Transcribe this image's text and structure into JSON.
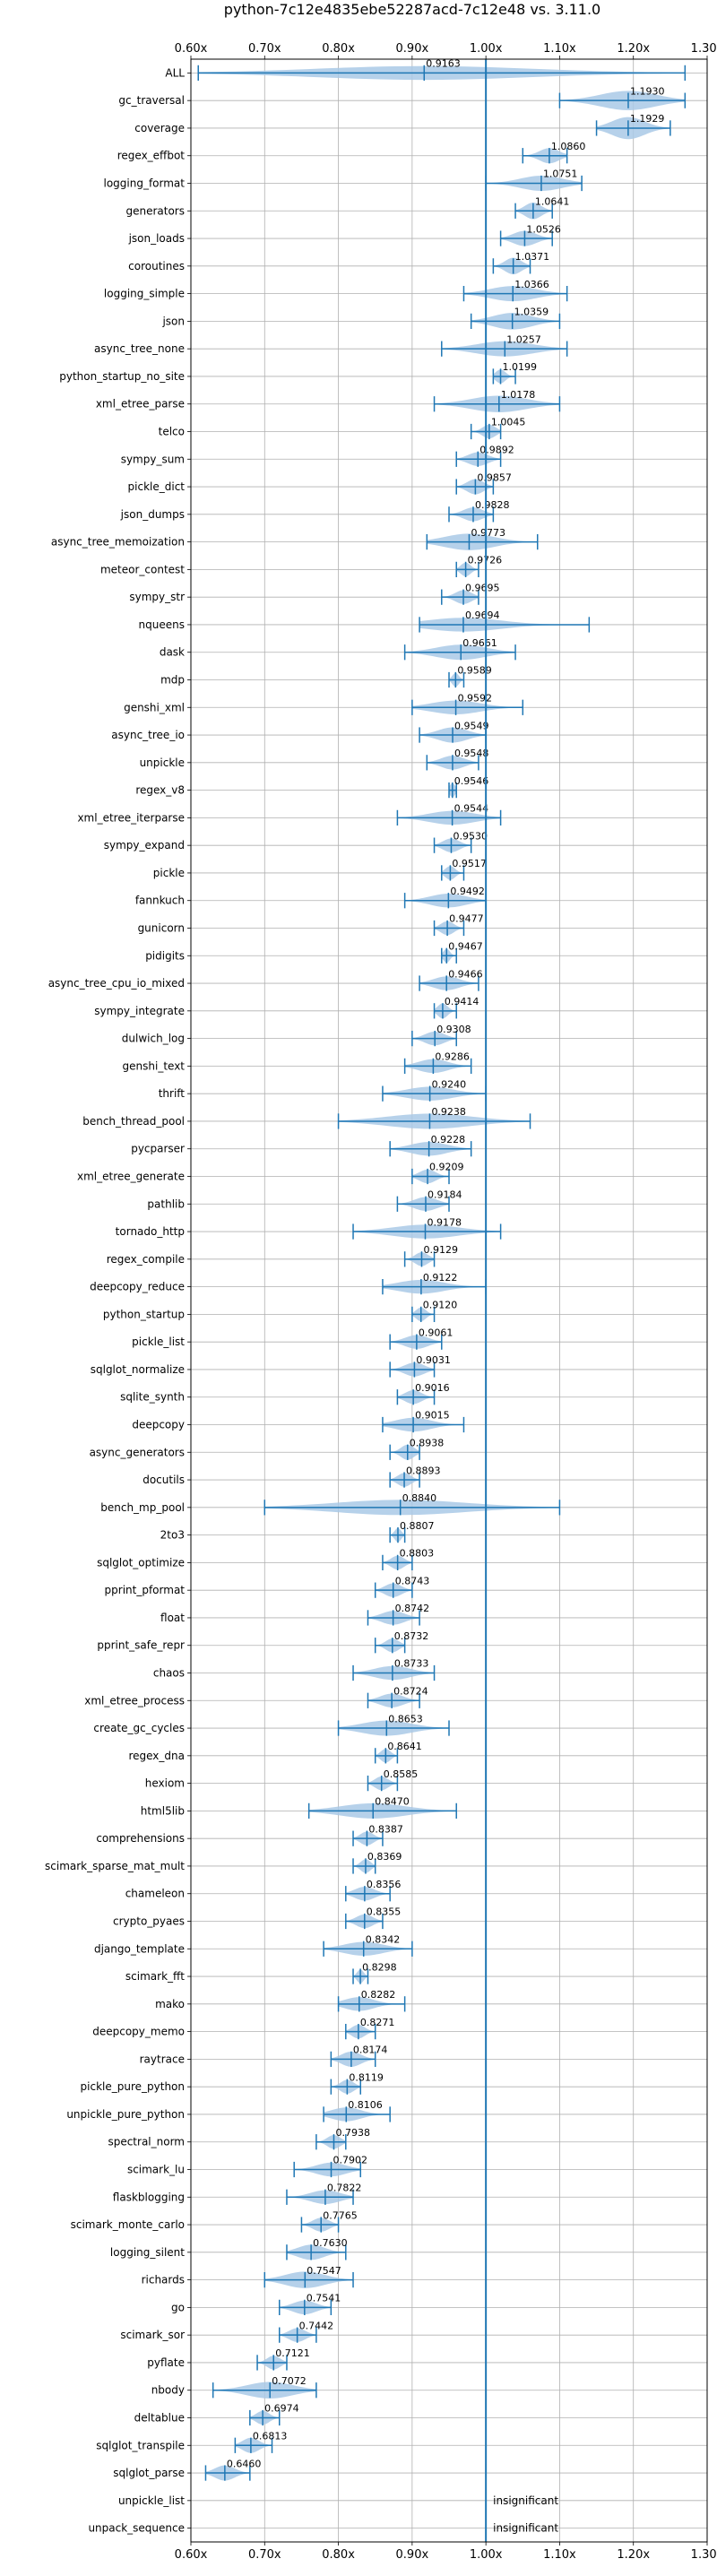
{
  "chart_data": {
    "type": "violin",
    "title": "python-7c12e4835ebe52287acd-7c12e48 vs. 3.11.0",
    "xlim": [
      0.6,
      1.3
    ],
    "x_ticks": [
      "0.60x",
      "0.70x",
      "0.80x",
      "0.90x",
      "1.00x",
      "1.10x",
      "1.20x",
      "1.30x"
    ],
    "x_tick_values": [
      0.6,
      0.7,
      0.8,
      0.9,
      1.0,
      1.1,
      1.2,
      1.3
    ],
    "reference_line": 1.0,
    "grid": true,
    "colors": {
      "body": "#a9c9e6",
      "line": "#1f77b4",
      "grid": "#b0b0b0",
      "axis": "#000000"
    },
    "insignificant_label": "insignificant",
    "benchmarks": [
      {
        "name": "ALL",
        "median": 0.9163,
        "label": "0.9163",
        "min": 0.61,
        "max": 1.27,
        "w": 0.5
      },
      {
        "name": "gc_traversal",
        "median": 1.193,
        "label": "1.1930",
        "min": 1.1,
        "max": 1.27,
        "w": 0.7
      },
      {
        "name": "coverage",
        "median": 1.1929,
        "label": "1.1929",
        "min": 1.15,
        "max": 1.25,
        "w": 0.8
      },
      {
        "name": "regex_effbot",
        "median": 1.086,
        "label": "1.0860",
        "min": 1.05,
        "max": 1.11,
        "w": 0.55
      },
      {
        "name": "logging_format",
        "median": 1.0751,
        "label": "1.0751",
        "min": 1.0,
        "max": 1.13,
        "w": 0.55
      },
      {
        "name": "generators",
        "median": 1.0641,
        "label": "1.0641",
        "min": 1.04,
        "max": 1.09,
        "w": 0.6
      },
      {
        "name": "json_loads",
        "median": 1.0526,
        "label": "1.0526",
        "min": 1.02,
        "max": 1.09,
        "w": 0.55
      },
      {
        "name": "coroutines",
        "median": 1.0371,
        "label": "1.0371",
        "min": 1.01,
        "max": 1.06,
        "w": 0.6
      },
      {
        "name": "logging_simple",
        "median": 1.0366,
        "label": "1.0366",
        "min": 0.97,
        "max": 1.11,
        "w": 0.55
      },
      {
        "name": "json",
        "median": 1.0359,
        "label": "1.0359",
        "min": 0.98,
        "max": 1.1,
        "w": 0.6
      },
      {
        "name": "async_tree_none",
        "median": 1.0257,
        "label": "1.0257",
        "min": 0.94,
        "max": 1.11,
        "w": 0.55
      },
      {
        "name": "python_startup_no_site",
        "median": 1.0199,
        "label": "1.0199",
        "min": 1.01,
        "max": 1.04,
        "w": 0.5
      },
      {
        "name": "xml_etree_parse",
        "median": 1.0178,
        "label": "1.0178",
        "min": 0.93,
        "max": 1.1,
        "w": 0.6
      },
      {
        "name": "telco",
        "median": 1.0045,
        "label": "1.0045",
        "min": 0.98,
        "max": 1.02,
        "w": 0.5
      },
      {
        "name": "sympy_sum",
        "median": 0.9892,
        "label": "0.9892",
        "min": 0.96,
        "max": 1.02,
        "w": 0.5
      },
      {
        "name": "pickle_dict",
        "median": 0.9857,
        "label": "0.9857",
        "min": 0.96,
        "max": 1.01,
        "w": 0.55
      },
      {
        "name": "json_dumps",
        "median": 0.9828,
        "label": "0.9828",
        "min": 0.95,
        "max": 1.01,
        "w": 0.5
      },
      {
        "name": "async_tree_memoization",
        "median": 0.9773,
        "label": "0.9773",
        "min": 0.92,
        "max": 1.07,
        "w": 0.6
      },
      {
        "name": "meteor_contest",
        "median": 0.9726,
        "label": "0.9726",
        "min": 0.96,
        "max": 0.99,
        "w": 0.5
      },
      {
        "name": "sympy_str",
        "median": 0.9695,
        "label": "0.9695",
        "min": 0.94,
        "max": 0.99,
        "w": 0.5
      },
      {
        "name": "nqueens",
        "median": 0.9694,
        "label": "0.9694",
        "min": 0.91,
        "max": 1.14,
        "w": 0.5
      },
      {
        "name": "dask",
        "median": 0.9661,
        "label": "0.9661",
        "min": 0.89,
        "max": 1.04,
        "w": 0.55
      },
      {
        "name": "mdp",
        "median": 0.9589,
        "label": "0.9589",
        "min": 0.95,
        "max": 0.97,
        "w": 0.5
      },
      {
        "name": "genshi_xml",
        "median": 0.9592,
        "label": "0.9592",
        "min": 0.9,
        "max": 1.05,
        "w": 0.5
      },
      {
        "name": "async_tree_io",
        "median": 0.9549,
        "label": "0.9549",
        "min": 0.91,
        "max": 1.0,
        "w": 0.55
      },
      {
        "name": "unpickle",
        "median": 0.9548,
        "label": "0.9548",
        "min": 0.92,
        "max": 0.99,
        "w": 0.5
      },
      {
        "name": "regex_v8",
        "median": 0.9546,
        "label": "0.9546",
        "min": 0.95,
        "max": 0.96,
        "w": 0.5
      },
      {
        "name": "xml_etree_iterparse",
        "median": 0.9544,
        "label": "0.9544",
        "min": 0.88,
        "max": 1.02,
        "w": 0.5
      },
      {
        "name": "sympy_expand",
        "median": 0.953,
        "label": "0.9530",
        "min": 0.93,
        "max": 0.98,
        "w": 0.5
      },
      {
        "name": "pickle",
        "median": 0.9517,
        "label": "0.9517",
        "min": 0.94,
        "max": 0.97,
        "w": 0.5
      },
      {
        "name": "fannkuch",
        "median": 0.9492,
        "label": "0.9492",
        "min": 0.89,
        "max": 1.0,
        "w": 0.5
      },
      {
        "name": "gunicorn",
        "median": 0.9477,
        "label": "0.9477",
        "min": 0.93,
        "max": 0.97,
        "w": 0.5
      },
      {
        "name": "pidigits",
        "median": 0.9467,
        "label": "0.9467",
        "min": 0.94,
        "max": 0.96,
        "w": 0.5
      },
      {
        "name": "async_tree_cpu_io_mixed",
        "median": 0.9466,
        "label": "0.9466",
        "min": 0.91,
        "max": 0.99,
        "w": 0.5
      },
      {
        "name": "sympy_integrate",
        "median": 0.9414,
        "label": "0.9414",
        "min": 0.93,
        "max": 0.96,
        "w": 0.55
      },
      {
        "name": "dulwich_log",
        "median": 0.9308,
        "label": "0.9308",
        "min": 0.9,
        "max": 0.96,
        "w": 0.5
      },
      {
        "name": "genshi_text",
        "median": 0.9286,
        "label": "0.9286",
        "min": 0.89,
        "max": 0.98,
        "w": 0.5
      },
      {
        "name": "thrift",
        "median": 0.924,
        "label": "0.9240",
        "min": 0.86,
        "max": 1.0,
        "w": 0.5
      },
      {
        "name": "bench_thread_pool",
        "median": 0.9238,
        "label": "0.9238",
        "min": 0.8,
        "max": 1.06,
        "w": 0.55
      },
      {
        "name": "pycparser",
        "median": 0.9228,
        "label": "0.9228",
        "min": 0.87,
        "max": 0.98,
        "w": 0.5
      },
      {
        "name": "xml_etree_generate",
        "median": 0.9209,
        "label": "0.9209",
        "min": 0.9,
        "max": 0.95,
        "w": 0.5
      },
      {
        "name": "pathlib",
        "median": 0.9184,
        "label": "0.9184",
        "min": 0.88,
        "max": 0.95,
        "w": 0.5
      },
      {
        "name": "tornado_http",
        "median": 0.9178,
        "label": "0.9178",
        "min": 0.82,
        "max": 1.02,
        "w": 0.5
      },
      {
        "name": "regex_compile",
        "median": 0.9129,
        "label": "0.9129",
        "min": 0.89,
        "max": 0.93,
        "w": 0.5
      },
      {
        "name": "deepcopy_reduce",
        "median": 0.9122,
        "label": "0.9122",
        "min": 0.86,
        "max": 1.0,
        "w": 0.5
      },
      {
        "name": "python_startup",
        "median": 0.912,
        "label": "0.9120",
        "min": 0.9,
        "max": 0.93,
        "w": 0.5
      },
      {
        "name": "pickle_list",
        "median": 0.9061,
        "label": "0.9061",
        "min": 0.87,
        "max": 0.94,
        "w": 0.5
      },
      {
        "name": "sqlglot_normalize",
        "median": 0.9031,
        "label": "0.9031",
        "min": 0.87,
        "max": 0.93,
        "w": 0.5
      },
      {
        "name": "sqlite_synth",
        "median": 0.9016,
        "label": "0.9016",
        "min": 0.88,
        "max": 0.93,
        "w": 0.5
      },
      {
        "name": "deepcopy",
        "median": 0.9015,
        "label": "0.9015",
        "min": 0.86,
        "max": 0.97,
        "w": 0.5
      },
      {
        "name": "async_generators",
        "median": 0.8938,
        "label": "0.8938",
        "min": 0.87,
        "max": 0.91,
        "w": 0.55
      },
      {
        "name": "docutils",
        "median": 0.8893,
        "label": "0.8893",
        "min": 0.87,
        "max": 0.91,
        "w": 0.5
      },
      {
        "name": "bench_mp_pool",
        "median": 0.884,
        "label": "0.8840",
        "min": 0.7,
        "max": 1.1,
        "w": 0.55
      },
      {
        "name": "2to3",
        "median": 0.8807,
        "label": "0.8807",
        "min": 0.87,
        "max": 0.89,
        "w": 0.5
      },
      {
        "name": "sqlglot_optimize",
        "median": 0.8803,
        "label": "0.8803",
        "min": 0.86,
        "max": 0.9,
        "w": 0.5
      },
      {
        "name": "pprint_pformat",
        "median": 0.8743,
        "label": "0.8743",
        "min": 0.85,
        "max": 0.9,
        "w": 0.5
      },
      {
        "name": "float",
        "median": 0.8742,
        "label": "0.8742",
        "min": 0.84,
        "max": 0.91,
        "w": 0.5
      },
      {
        "name": "pprint_safe_repr",
        "median": 0.8732,
        "label": "0.8732",
        "min": 0.85,
        "max": 0.89,
        "w": 0.5
      },
      {
        "name": "chaos",
        "median": 0.8733,
        "label": "0.8733",
        "min": 0.82,
        "max": 0.93,
        "w": 0.5
      },
      {
        "name": "xml_etree_process",
        "median": 0.8724,
        "label": "0.8724",
        "min": 0.84,
        "max": 0.91,
        "w": 0.5
      },
      {
        "name": "create_gc_cycles",
        "median": 0.8653,
        "label": "0.8653",
        "min": 0.8,
        "max": 0.95,
        "w": 0.55
      },
      {
        "name": "regex_dna",
        "median": 0.8641,
        "label": "0.8641",
        "min": 0.85,
        "max": 0.88,
        "w": 0.5
      },
      {
        "name": "hexiom",
        "median": 0.8585,
        "label": "0.8585",
        "min": 0.84,
        "max": 0.88,
        "w": 0.5
      },
      {
        "name": "html5lib",
        "median": 0.847,
        "label": "0.8470",
        "min": 0.76,
        "max": 0.96,
        "w": 0.55
      },
      {
        "name": "comprehensions",
        "median": 0.8387,
        "label": "0.8387",
        "min": 0.82,
        "max": 0.86,
        "w": 0.5
      },
      {
        "name": "scimark_sparse_mat_mult",
        "median": 0.8369,
        "label": "0.8369",
        "min": 0.82,
        "max": 0.85,
        "w": 0.5
      },
      {
        "name": "chameleon",
        "median": 0.8356,
        "label": "0.8356",
        "min": 0.81,
        "max": 0.87,
        "w": 0.5
      },
      {
        "name": "crypto_pyaes",
        "median": 0.8355,
        "label": "0.8355",
        "min": 0.81,
        "max": 0.86,
        "w": 0.5
      },
      {
        "name": "django_template",
        "median": 0.8342,
        "label": "0.8342",
        "min": 0.78,
        "max": 0.9,
        "w": 0.5
      },
      {
        "name": "scimark_fft",
        "median": 0.8298,
        "label": "0.8298",
        "min": 0.82,
        "max": 0.84,
        "w": 0.5
      },
      {
        "name": "mako",
        "median": 0.8282,
        "label": "0.8282",
        "min": 0.8,
        "max": 0.89,
        "w": 0.5
      },
      {
        "name": "deepcopy_memo",
        "median": 0.8271,
        "label": "0.8271",
        "min": 0.81,
        "max": 0.85,
        "w": 0.5
      },
      {
        "name": "raytrace",
        "median": 0.8174,
        "label": "0.8174",
        "min": 0.79,
        "max": 0.85,
        "w": 0.55
      },
      {
        "name": "pickle_pure_python",
        "median": 0.8119,
        "label": "0.8119",
        "min": 0.79,
        "max": 0.83,
        "w": 0.5
      },
      {
        "name": "unpickle_pure_python",
        "median": 0.8106,
        "label": "0.8106",
        "min": 0.78,
        "max": 0.87,
        "w": 0.5
      },
      {
        "name": "spectral_norm",
        "median": 0.7938,
        "label": "0.7938",
        "min": 0.77,
        "max": 0.81,
        "w": 0.5
      },
      {
        "name": "scimark_lu",
        "median": 0.7902,
        "label": "0.7902",
        "min": 0.74,
        "max": 0.83,
        "w": 0.5
      },
      {
        "name": "flaskblogging",
        "median": 0.7822,
        "label": "0.7822",
        "min": 0.73,
        "max": 0.82,
        "w": 0.5
      },
      {
        "name": "scimark_monte_carlo",
        "median": 0.7765,
        "label": "0.7765",
        "min": 0.75,
        "max": 0.8,
        "w": 0.5
      },
      {
        "name": "logging_silent",
        "median": 0.763,
        "label": "0.7630",
        "min": 0.73,
        "max": 0.81,
        "w": 0.55
      },
      {
        "name": "richards",
        "median": 0.7547,
        "label": "0.7547",
        "min": 0.7,
        "max": 0.82,
        "w": 0.6
      },
      {
        "name": "go",
        "median": 0.7541,
        "label": "0.7541",
        "min": 0.72,
        "max": 0.79,
        "w": 0.5
      },
      {
        "name": "scimark_sor",
        "median": 0.7442,
        "label": "0.7442",
        "min": 0.72,
        "max": 0.77,
        "w": 0.5
      },
      {
        "name": "pyflate",
        "median": 0.7121,
        "label": "0.7121",
        "min": 0.69,
        "max": 0.73,
        "w": 0.5
      },
      {
        "name": "nbody",
        "median": 0.7072,
        "label": "0.7072",
        "min": 0.63,
        "max": 0.77,
        "w": 0.6
      },
      {
        "name": "deltablue",
        "median": 0.6974,
        "label": "0.6974",
        "min": 0.68,
        "max": 0.72,
        "w": 0.5
      },
      {
        "name": "sqlglot_transpile",
        "median": 0.6813,
        "label": "0.6813",
        "min": 0.66,
        "max": 0.71,
        "w": 0.55
      },
      {
        "name": "sqlglot_parse",
        "median": 0.646,
        "label": "0.6460",
        "min": 0.62,
        "max": 0.68,
        "w": 0.55
      },
      {
        "name": "unpickle_list",
        "insignificant": true
      },
      {
        "name": "unpack_sequence",
        "insignificant": true
      }
    ]
  }
}
